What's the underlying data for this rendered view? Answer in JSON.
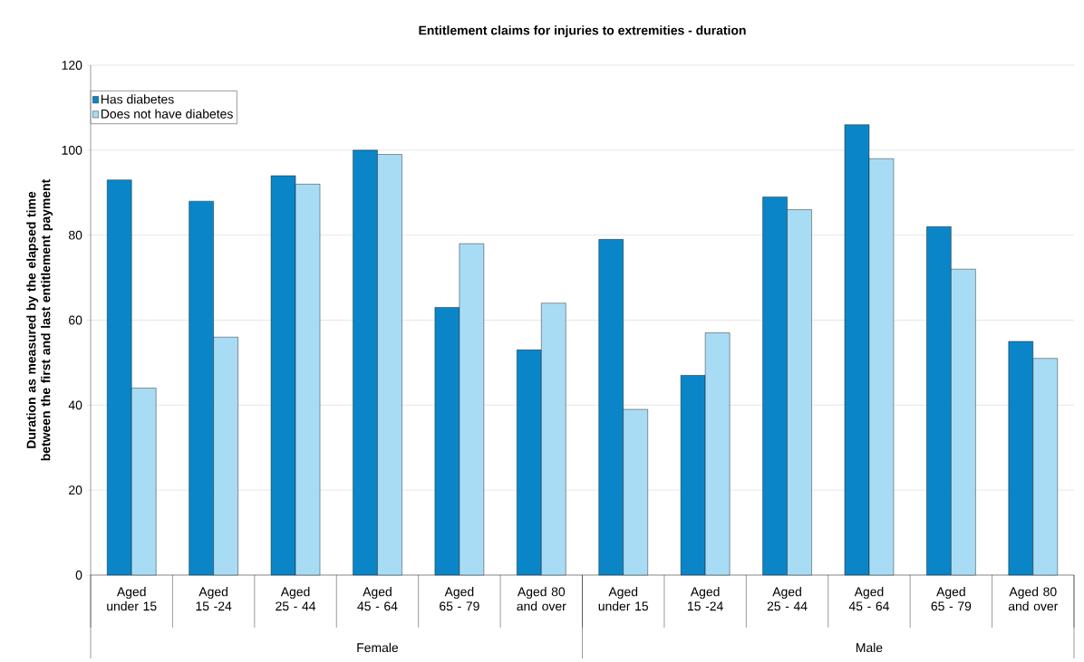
{
  "chart_data": {
    "type": "bar",
    "title": "Entitlement claims for injuries to extremities - duration",
    "ylabel": "Duration as measured by the elapsed time between the first and last entitlement payment",
    "categories": [
      "Aged under 15",
      "Aged 15 -24",
      "Aged 25 - 44",
      "Aged 45 - 64",
      "Aged 65 - 79",
      "Aged 80 and over",
      "Aged under 15",
      "Aged 15 -24",
      "Aged 25 - 44",
      "Aged 45 - 64",
      "Aged 65 - 79",
      "Aged 80 and over"
    ],
    "series": [
      {
        "name": "Has diabetes",
        "color": "#0a86c8",
        "values": [
          93,
          88,
          94,
          100,
          63,
          53,
          79,
          47,
          89,
          106,
          82,
          55
        ]
      },
      {
        "name": "Does not have diabetes",
        "color": "#a8dcf5",
        "values": [
          44,
          56,
          92,
          99,
          78,
          64,
          39,
          57,
          86,
          98,
          72,
          51
        ]
      }
    ],
    "annotations": [
      "Female",
      "Male"
    ],
    "ylim": [
      0,
      120
    ],
    "yticks": [
      0,
      20,
      40,
      60,
      80,
      100,
      120
    ],
    "grid": "y",
    "legend": "top left"
  }
}
